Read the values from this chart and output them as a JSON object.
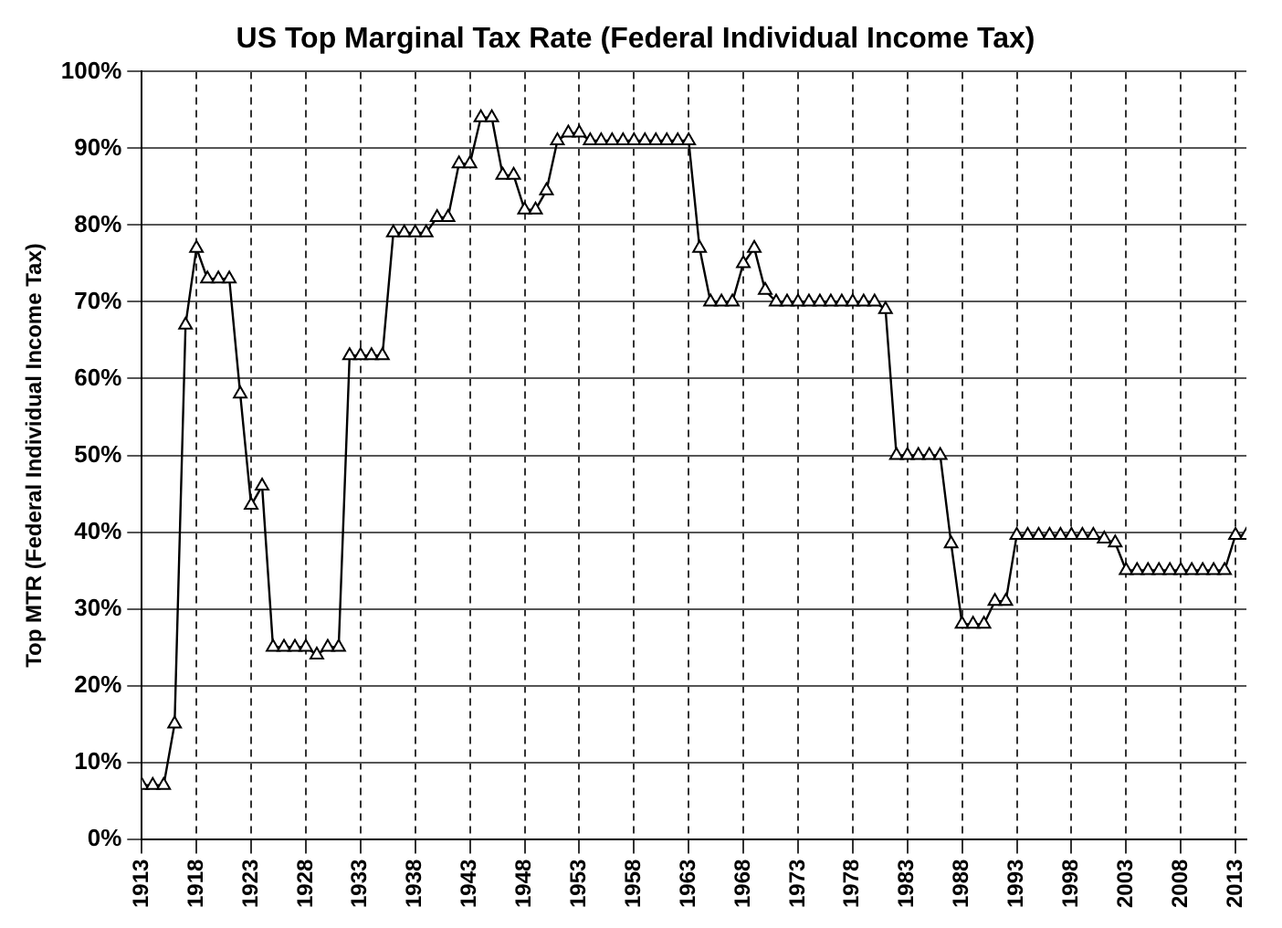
{
  "chart_data": {
    "type": "line",
    "title": "US Top Marginal Tax Rate (Federal Individual Income Tax)",
    "ylabel": "Top MTR (Federal Individual Income Tax)",
    "x": [
      1913,
      1914,
      1915,
      1916,
      1917,
      1918,
      1919,
      1920,
      1921,
      1922,
      1923,
      1924,
      1925,
      1926,
      1927,
      1928,
      1929,
      1930,
      1931,
      1932,
      1933,
      1934,
      1935,
      1936,
      1937,
      1938,
      1939,
      1940,
      1941,
      1942,
      1943,
      1944,
      1945,
      1946,
      1947,
      1948,
      1949,
      1950,
      1951,
      1952,
      1953,
      1954,
      1955,
      1956,
      1957,
      1958,
      1959,
      1960,
      1961,
      1962,
      1963,
      1964,
      1965,
      1966,
      1967,
      1968,
      1969,
      1970,
      1971,
      1972,
      1973,
      1974,
      1975,
      1976,
      1977,
      1978,
      1979,
      1980,
      1981,
      1982,
      1983,
      1984,
      1985,
      1986,
      1987,
      1988,
      1989,
      1990,
      1991,
      1992,
      1993,
      1994,
      1995,
      1996,
      1997,
      1998,
      1999,
      2000,
      2001,
      2002,
      2003,
      2004,
      2005,
      2006,
      2007,
      2008,
      2009,
      2010,
      2011,
      2012,
      2013,
      2014
    ],
    "series": [
      {
        "color": "#000000",
        "values": [
          7,
          7,
          7,
          15,
          67,
          77,
          73,
          73,
          73,
          58,
          43.5,
          46,
          25,
          25,
          25,
          25,
          24,
          25,
          25,
          63,
          63,
          63,
          63,
          79,
          79,
          79,
          79,
          81,
          81,
          88,
          88,
          94,
          94,
          86.5,
          86.5,
          82,
          82,
          84.5,
          91,
          92,
          92,
          91,
          91,
          91,
          91,
          91,
          91,
          91,
          91,
          91,
          91,
          77,
          70,
          70,
          70,
          75,
          77,
          71.5,
          70,
          70,
          70,
          70,
          70,
          70,
          70,
          70,
          70,
          70,
          69,
          50,
          50,
          50,
          50,
          50,
          38.5,
          28,
          28,
          28,
          31,
          31,
          39.6,
          39.6,
          39.6,
          39.6,
          39.6,
          39.6,
          39.6,
          39.6,
          39.1,
          38.6,
          35,
          35,
          35,
          35,
          35,
          35,
          35,
          35,
          35,
          35,
          39.6,
          39.6
        ]
      }
    ],
    "xlim": [
      1913,
      2014
    ],
    "xticks": [
      1913,
      1918,
      1923,
      1928,
      1933,
      1938,
      1943,
      1948,
      1953,
      1958,
      1963,
      1968,
      1973,
      1978,
      1983,
      1988,
      1993,
      1998,
      2003,
      2008,
      2013
    ],
    "ylim": [
      0,
      100
    ],
    "yticks": [
      {
        "value": 0,
        "label": "0%"
      },
      {
        "value": 10,
        "label": "10%"
      },
      {
        "value": 20,
        "label": "20%"
      },
      {
        "value": 30,
        "label": "30%"
      },
      {
        "value": 40,
        "label": "40%"
      },
      {
        "value": 50,
        "label": "50%"
      },
      {
        "value": 60,
        "label": "60%"
      },
      {
        "value": 70,
        "label": "70%"
      },
      {
        "value": 80,
        "label": "80%"
      },
      {
        "value": 90,
        "label": "90%"
      },
      {
        "value": 100,
        "label": "100%"
      }
    ],
    "grid": true,
    "marker": "triangle",
    "line_style": "solid"
  }
}
